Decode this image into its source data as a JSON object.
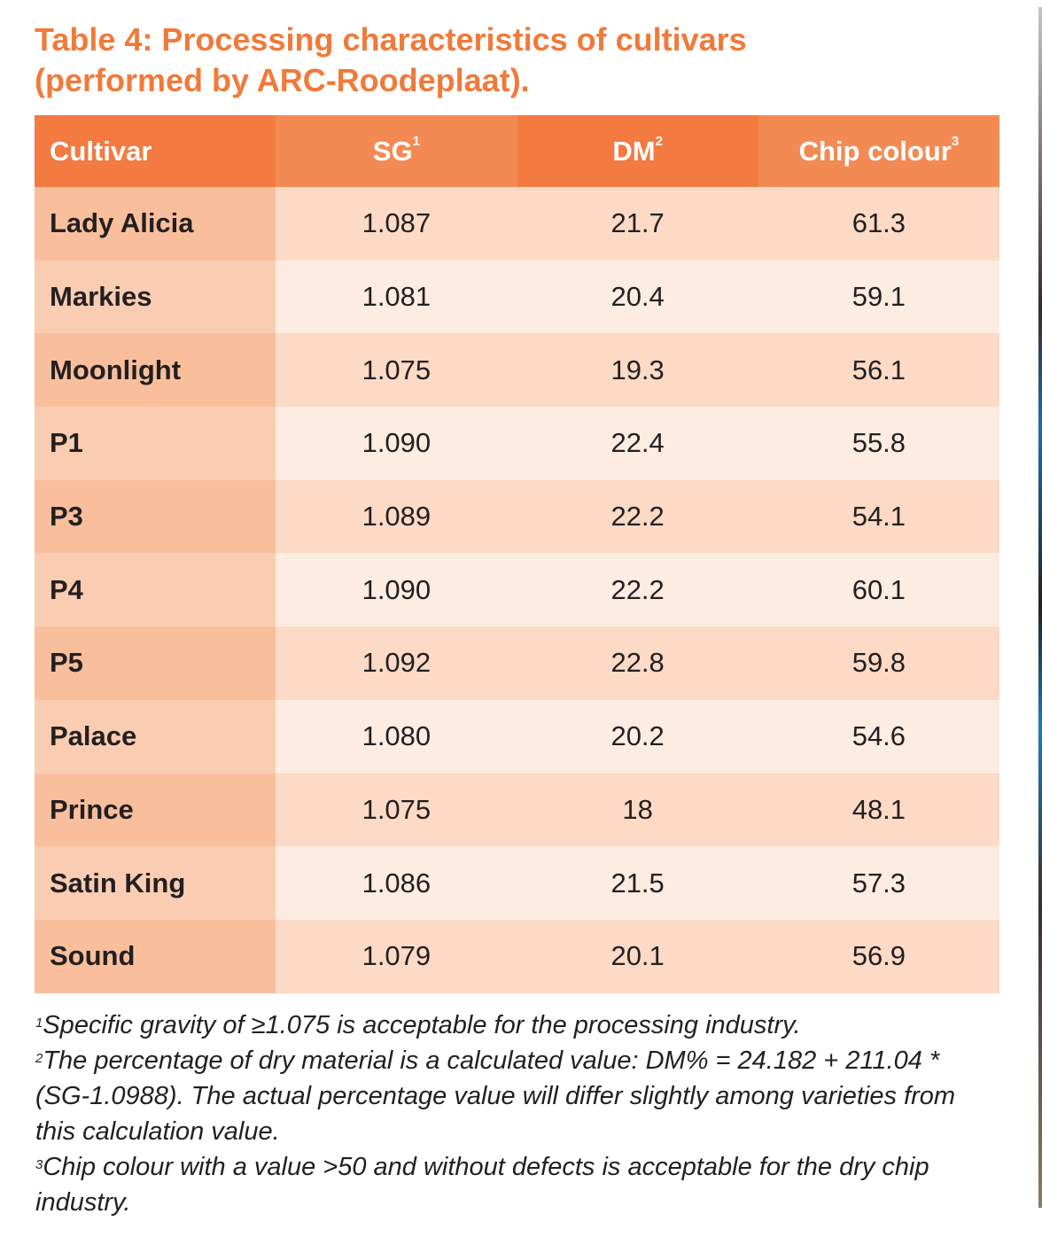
{
  "title": {
    "line1": "Table 4: Processing characteristics of cultivars",
    "line2": "(performed by ARC-Roodeplaat)."
  },
  "table": {
    "headers": [
      {
        "label": "Cultivar",
        "sup": ""
      },
      {
        "label": "SG",
        "sup": "1"
      },
      {
        "label": "DM",
        "sup": "2"
      },
      {
        "label": "Chip colour",
        "sup": "3"
      }
    ],
    "rows": [
      [
        "Lady Alicia",
        "1.087",
        "21.7",
        "61.3"
      ],
      [
        "Markies",
        "1.081",
        "20.4",
        "59.1"
      ],
      [
        "Moonlight",
        "1.075",
        "19.3",
        "56.1"
      ],
      [
        "P1",
        "1.090",
        "22.4",
        "55.8"
      ],
      [
        "P3",
        "1.089",
        "22.2",
        "54.1"
      ],
      [
        "P4",
        "1.090",
        "22.2",
        "60.1"
      ],
      [
        "P5",
        "1.092",
        "22.8",
        "59.8"
      ],
      [
        "Palace",
        "1.080",
        "20.2",
        "54.6"
      ],
      [
        "Prince",
        "1.075",
        "18",
        "48.1"
      ],
      [
        "Satin King",
        "1.086",
        "21.5",
        "57.3"
      ],
      [
        "Sound",
        "1.079",
        "20.1",
        "56.9"
      ]
    ]
  },
  "footnotes": [
    {
      "sup": "1",
      "text": "Specific gravity of ≥1.075 is acceptable for the processing industry."
    },
    {
      "sup": "2",
      "text": "The percentage of dry material is a calculated value: DM% = 24.182 + 211.04 *(SG-1.0988). The actual percentage value will differ slightly among varieties from this calculation value."
    },
    {
      "sup": "3",
      "text": "Chip colour with a value >50 and without defects is acceptable for the dry chip industry."
    }
  ],
  "colors": {
    "accent": "#f07a3a",
    "header_dark": "#f37a40",
    "header_light": "#f48a53"
  }
}
